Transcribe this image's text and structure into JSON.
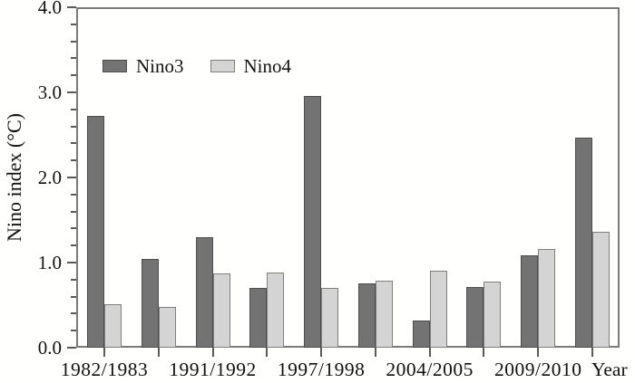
{
  "chart_data": {
    "type": "bar",
    "title": "",
    "ylabel": "Nino index (°C)",
    "xlabel": "Year",
    "ylim": [
      0.0,
      4.0
    ],
    "y_major_step": 1.0,
    "y_minor_step": 0.2,
    "y_tick_labels": [
      "0.0",
      "1.0",
      "2.0",
      "3.0",
      "4.0"
    ],
    "n_groups": 10,
    "x_tick_labels": [
      "1982/1983",
      "",
      "1991/1992",
      "",
      "1997/1998",
      "",
      "2004/2005",
      "",
      "2009/2010",
      ""
    ],
    "series": [
      {
        "name": "Nino3",
        "fill": "#737373",
        "border": "#4d4d4d",
        "values": [
          2.72,
          1.04,
          1.3,
          0.7,
          2.96,
          0.75,
          0.32,
          0.71,
          1.09,
          2.47
        ]
      },
      {
        "name": "Nino4",
        "fill": "#d4d4d4",
        "border": "#7f7f7f",
        "values": [
          0.51,
          0.48,
          0.87,
          0.88,
          0.7,
          0.79,
          0.9,
          0.78,
          1.16,
          1.36
        ]
      }
    ],
    "legend_position": "top-left-inside",
    "grid": false
  },
  "colors": {
    "frame": "#7a7a7a",
    "tick": "#5a5a5a",
    "text": "#111111",
    "background": "#ffffff"
  }
}
